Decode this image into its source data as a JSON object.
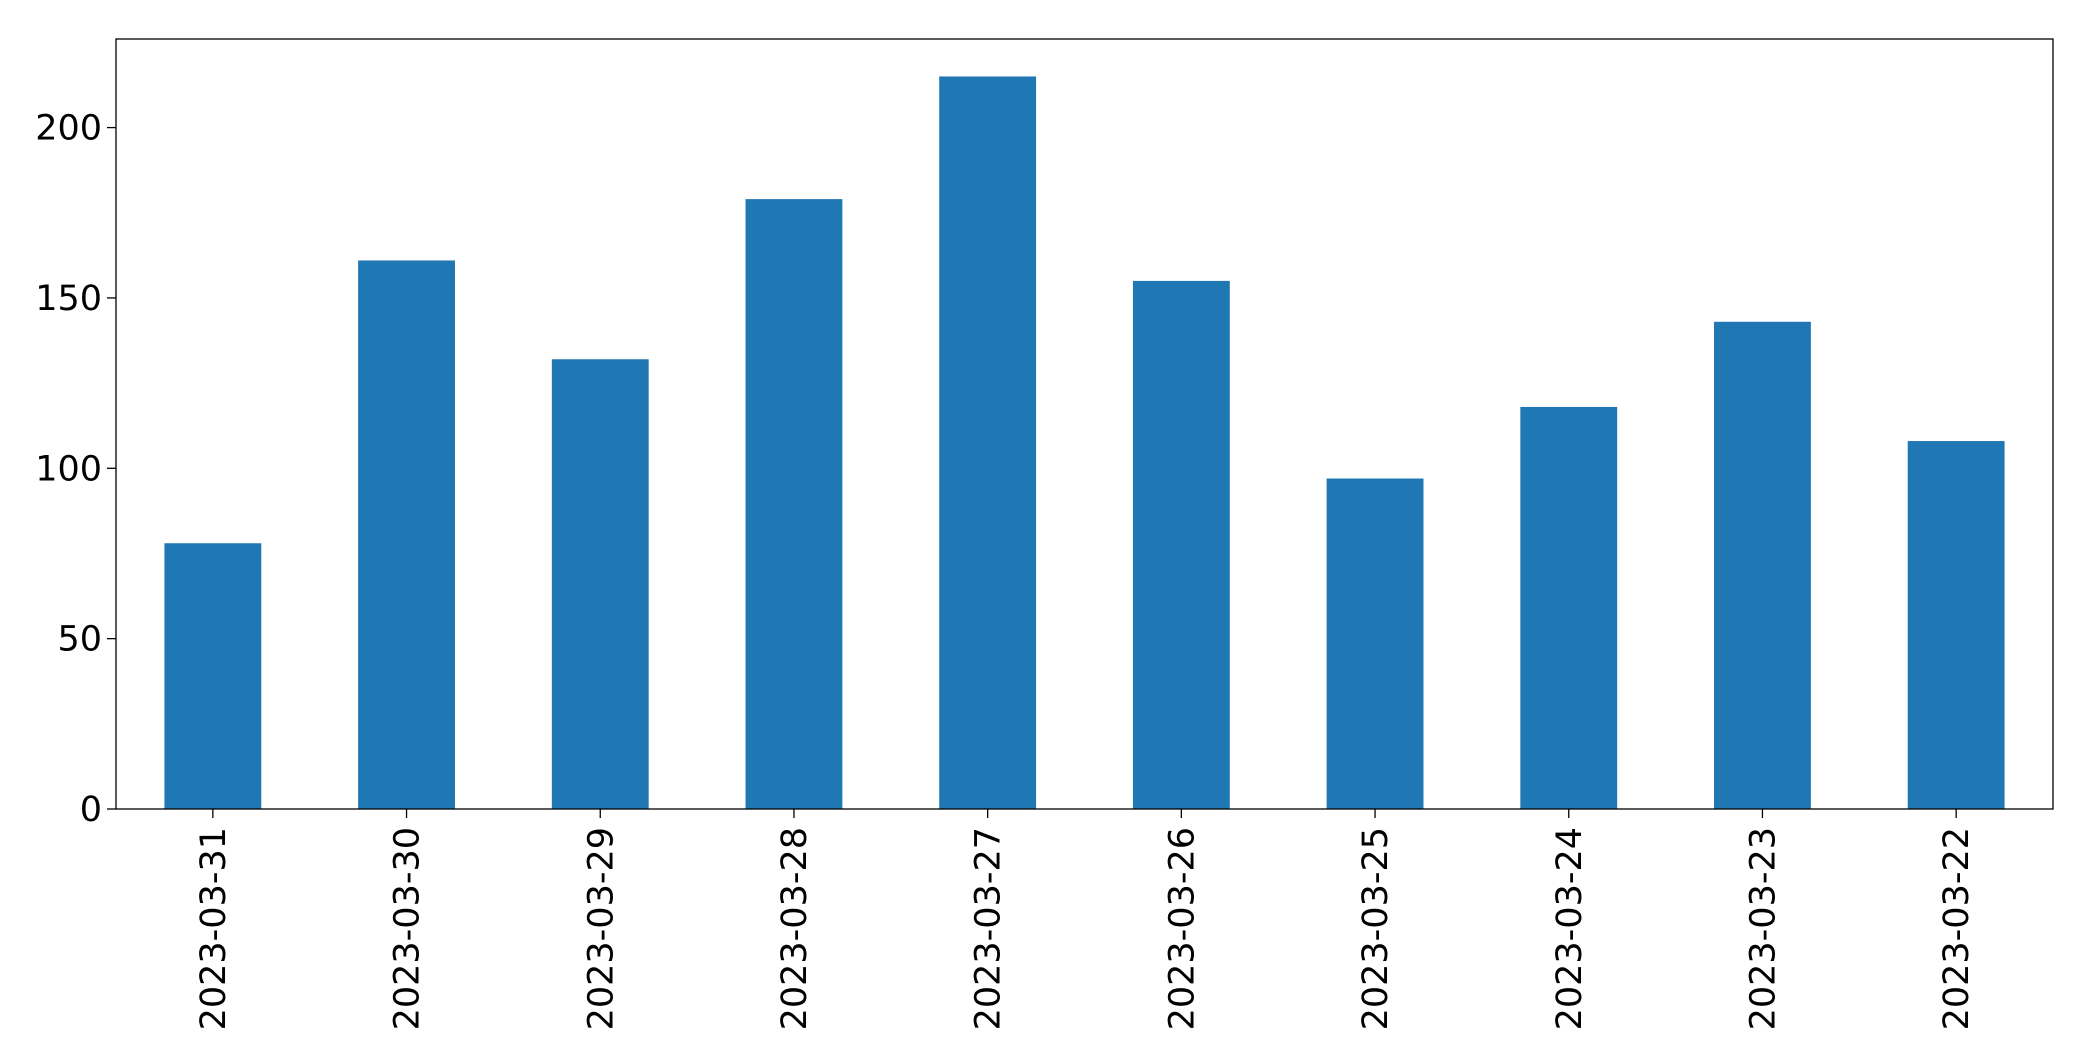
{
  "chart_data": {
    "type": "bar",
    "categories": [
      "2023-03-31",
      "2023-03-30",
      "2023-03-29",
      "2023-03-28",
      "2023-03-27",
      "2023-03-26",
      "2023-03-25",
      "2023-03-24",
      "2023-03-23",
      "2023-03-22"
    ],
    "values": [
      78,
      161,
      132,
      179,
      215,
      155,
      97,
      118,
      143,
      108
    ],
    "color": "#1f77b4",
    "ylim": [
      0,
      226
    ],
    "yticks": [
      0,
      50,
      100,
      150,
      200
    ],
    "grid": false
  }
}
